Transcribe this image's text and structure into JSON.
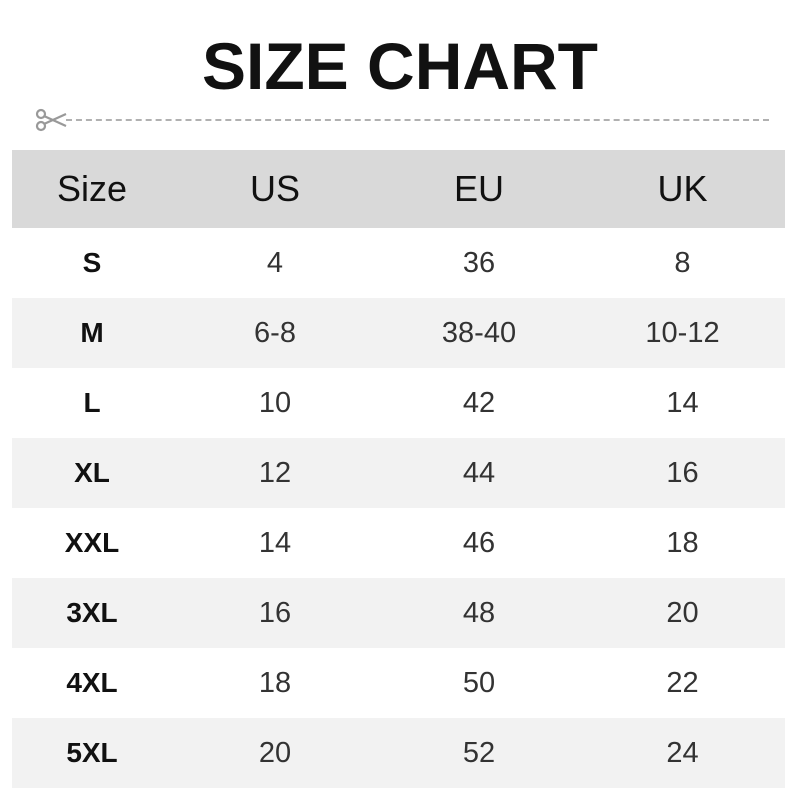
{
  "title": "SIZE CHART",
  "icons": {
    "cut_line": "scissors-icon"
  },
  "table": {
    "headers": [
      "Size",
      "US",
      "EU",
      "UK"
    ],
    "rows": [
      [
        "S",
        "4",
        "36",
        "8"
      ],
      [
        "M",
        "6-8",
        "38-40",
        "10-12"
      ],
      [
        "L",
        "10",
        "42",
        "14"
      ],
      [
        "XL",
        "12",
        "44",
        "16"
      ],
      [
        "XXL",
        "14",
        "46",
        "18"
      ],
      [
        "3XL",
        "16",
        "48",
        "20"
      ],
      [
        "4XL",
        "18",
        "50",
        "22"
      ],
      [
        "5XL",
        "20",
        "52",
        "24"
      ]
    ]
  }
}
